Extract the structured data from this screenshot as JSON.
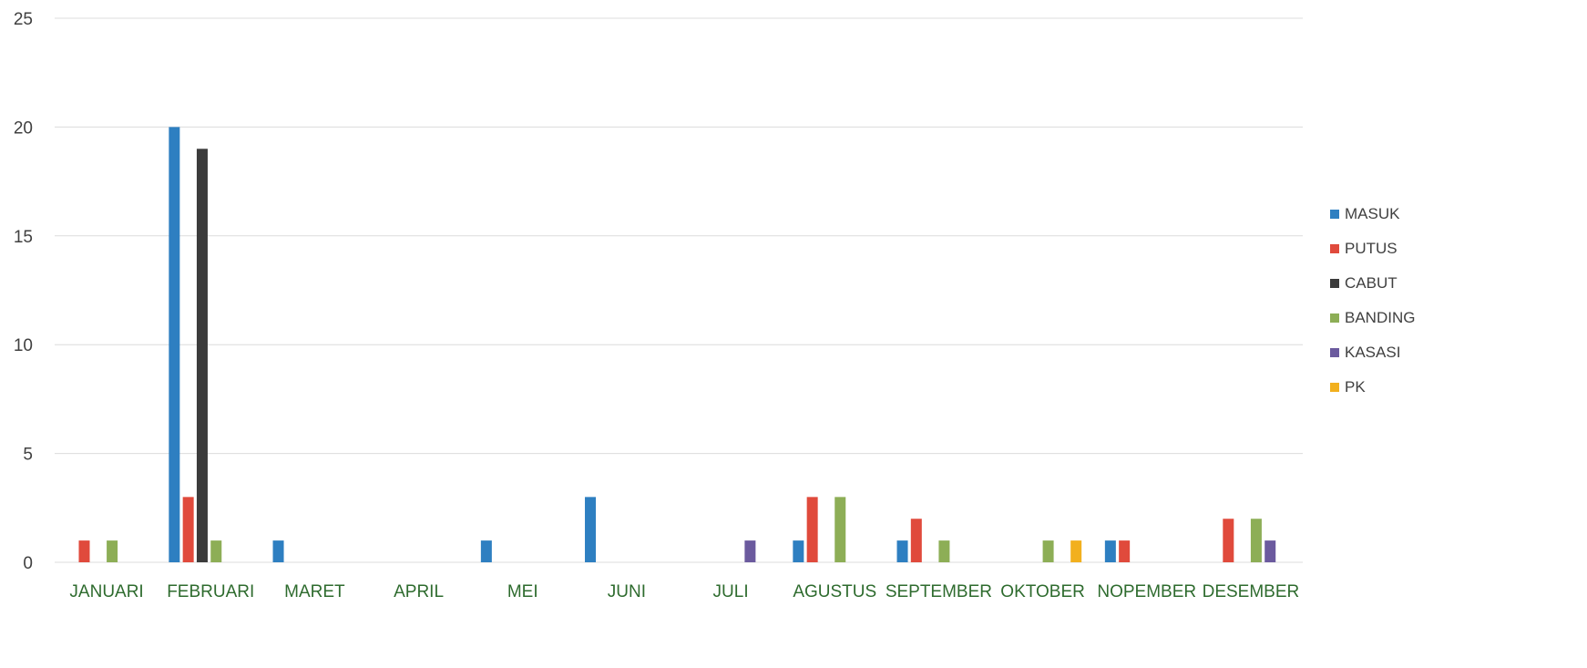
{
  "chart_data": {
    "type": "bar",
    "categories": [
      "JANUARI",
      "FEBRUARI",
      "MARET",
      "APRIL",
      "MEI",
      "JUNI",
      "JULI",
      "AGUSTUS",
      "SEPTEMBER",
      "OKTOBER",
      "NOPEMBER",
      "DESEMBER"
    ],
    "series": [
      {
        "name": "MASUK",
        "color": "#2e7fc1",
        "values": [
          0,
          20,
          1,
          0,
          1,
          3,
          0,
          1,
          1,
          0,
          1,
          0
        ]
      },
      {
        "name": "PUTUS",
        "color": "#e04a3c",
        "values": [
          1,
          3,
          0,
          0,
          0,
          0,
          0,
          3,
          2,
          0,
          1,
          2
        ]
      },
      {
        "name": "CABUT",
        "color": "#3b3b3b",
        "values": [
          0,
          19,
          0,
          0,
          0,
          0,
          0,
          0,
          0,
          0,
          0,
          0
        ]
      },
      {
        "name": "BANDING",
        "color": "#8dae56",
        "values": [
          1,
          1,
          0,
          0,
          0,
          0,
          0,
          3,
          1,
          1,
          0,
          2
        ]
      },
      {
        "name": "KASASI",
        "color": "#6b5a9e",
        "values": [
          0,
          0,
          0,
          0,
          0,
          0,
          1,
          0,
          0,
          0,
          0,
          1
        ]
      },
      {
        "name": "PK",
        "color": "#f2b01e",
        "values": [
          0,
          0,
          0,
          0,
          0,
          0,
          0,
          0,
          0,
          1,
          0,
          0
        ]
      }
    ],
    "ylim": [
      0,
      25
    ],
    "yticks": [
      0,
      5,
      10,
      15,
      20,
      25
    ],
    "grid": true,
    "legend_position": "right",
    "title": "",
    "xlabel": "",
    "ylabel": ""
  }
}
